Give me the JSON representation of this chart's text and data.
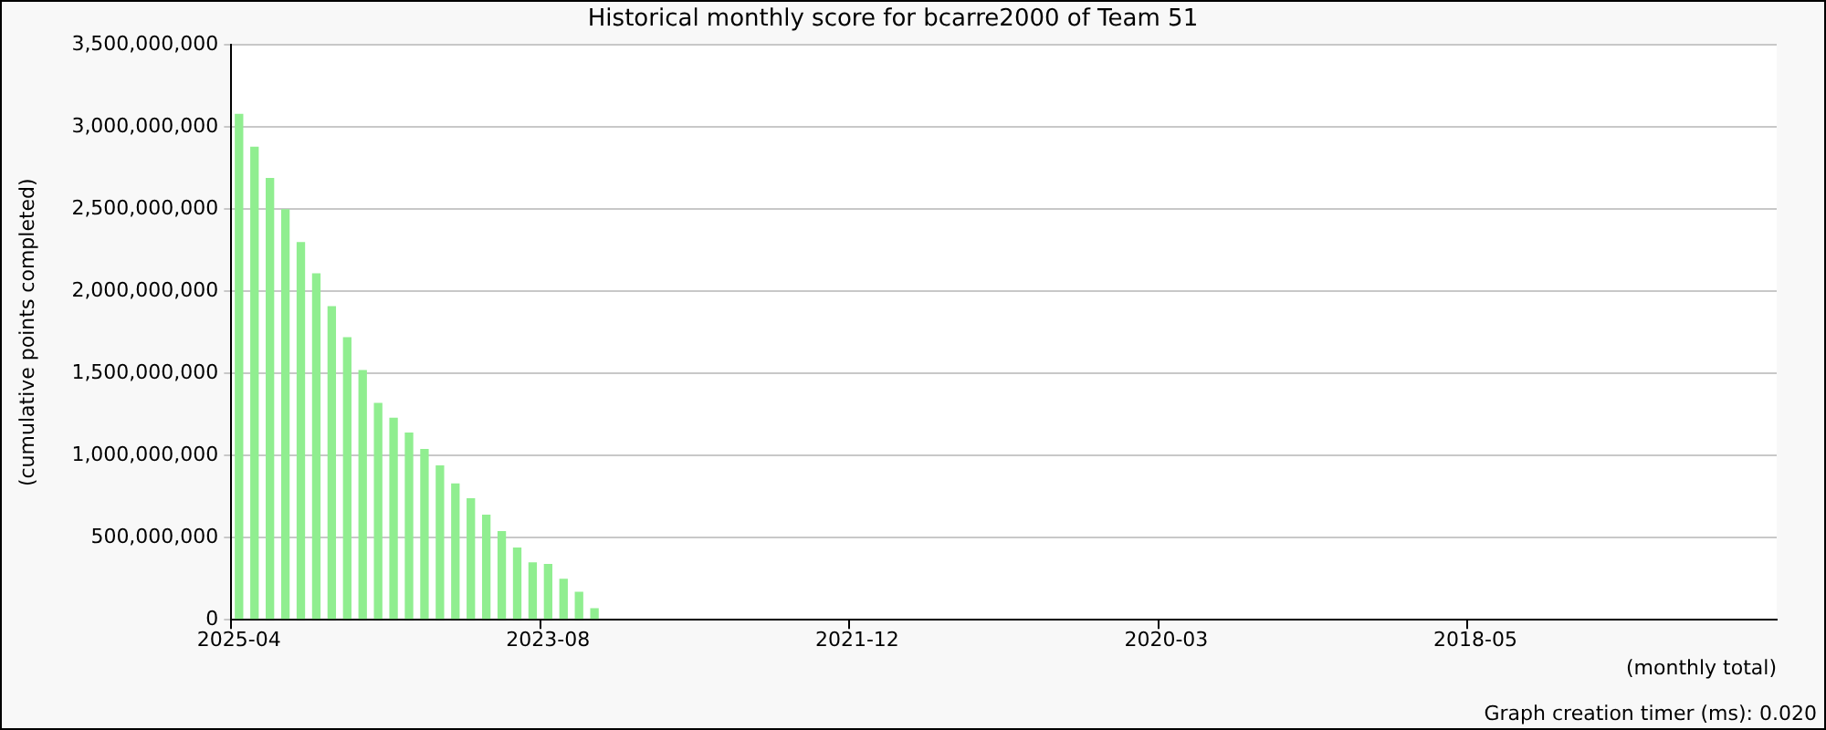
{
  "chart_data": {
    "type": "bar",
    "title": "Historical monthly score for bcarre2000 of Team 51",
    "xlabel": "(monthly total)",
    "ylabel": "(cumulative points completed)",
    "annotations": [
      "Graph creation timer (ms): 0.020"
    ],
    "categories": [
      "2025-04",
      null,
      null,
      null,
      null,
      null,
      null,
      null,
      null,
      null,
      null,
      null,
      null,
      null,
      null,
      null,
      null,
      null,
      null,
      null,
      "2023-08",
      null,
      null,
      null,
      null,
      null,
      null,
      null,
      null,
      null,
      null,
      null,
      null,
      null,
      null,
      null,
      null,
      null,
      null,
      null,
      "2021-12",
      null,
      null,
      null,
      null,
      null,
      null,
      null,
      null,
      null,
      null,
      null,
      null,
      null,
      null,
      null,
      null,
      null,
      null,
      null,
      "2020-03",
      null,
      null,
      null,
      null,
      null,
      null,
      null,
      null,
      null,
      null,
      null,
      null,
      null,
      null,
      null,
      null,
      null,
      null,
      null,
      "2018-05",
      null,
      null,
      null,
      null,
      null,
      null,
      null,
      null,
      null,
      null,
      null,
      null,
      null,
      null,
      null,
      null,
      null,
      null,
      null
    ],
    "values": [
      3080000000,
      2880000000,
      2690000000,
      2500000000,
      2300000000,
      2110000000,
      1910000000,
      1720000000,
      1520000000,
      1320000000,
      1230000000,
      1140000000,
      1040000000,
      940000000,
      830000000,
      740000000,
      640000000,
      540000000,
      440000000,
      350000000,
      340000000,
      250000000,
      170000000,
      70000000,
      null,
      null,
      null,
      null,
      null,
      null,
      null,
      null,
      null,
      null,
      null,
      null,
      null,
      null,
      null,
      null,
      null,
      null,
      null,
      null,
      null,
      null,
      null,
      null,
      null,
      null,
      null,
      null,
      null,
      null,
      null,
      null,
      null,
      null,
      null,
      null,
      null,
      null,
      null,
      null,
      null,
      null,
      null,
      null,
      null,
      null,
      null,
      null,
      null,
      null,
      null,
      null,
      null,
      null,
      null,
      null,
      null,
      null,
      null,
      null,
      null,
      null,
      null,
      null,
      null,
      null,
      null,
      null,
      null,
      null,
      null,
      null,
      null,
      null,
      null,
      null
    ],
    "color": "#90ee90",
    "ylim": [
      0,
      3500000000
    ],
    "yticks": [
      0,
      {
        "value": 500000000,
        "label": "500,000,000"
      },
      {
        "value": 1000000000,
        "label": "1,000,000,000"
      },
      {
        "value": 1500000000,
        "label": "1,500,000,000"
      },
      {
        "value": 2000000000,
        "label": "2,000,000,000"
      },
      {
        "value": 2500000000,
        "label": "2,500,000,000"
      },
      {
        "value": 3000000000,
        "label": "3,000,000,000"
      },
      {
        "value": 3500000000,
        "label": "3,500,000,000"
      }
    ],
    "grid": "y",
    "legend": false
  }
}
